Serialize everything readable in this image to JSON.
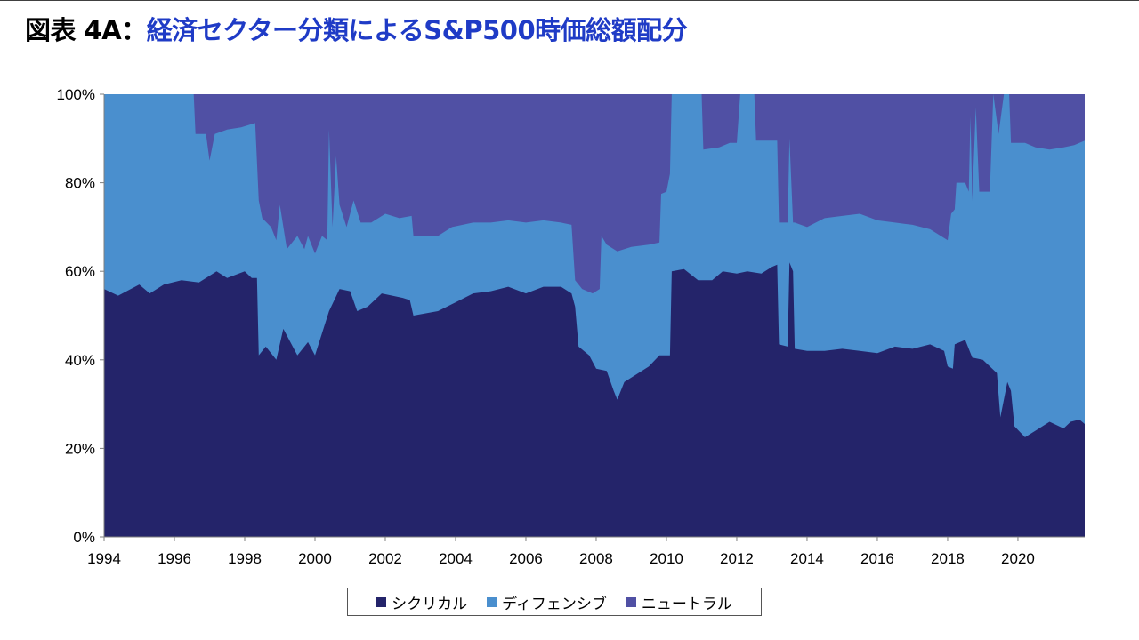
{
  "header": {
    "prefix": "図表 4A：",
    "title": "経済セクター分類によるS&P500時価総額配分"
  },
  "colors": {
    "cyclical": "#24246a",
    "defensive": "#4a8fce",
    "neutral": "#5050a4",
    "title_accent": "#1f3bc6"
  },
  "chart_data": {
    "type": "area",
    "stacked": true,
    "title": "経済セクター分類によるS&P500時価総額配分",
    "y_unit": "%",
    "ylim": [
      0,
      100
    ],
    "xlim": [
      1994,
      2021.9
    ],
    "y_ticks": [
      "0%",
      "20%",
      "40%",
      "60%",
      "80%",
      "100%"
    ],
    "x_ticks": [
      "1994",
      "1996",
      "1998",
      "2000",
      "2002",
      "2004",
      "2006",
      "2008",
      "2010",
      "2012",
      "2014",
      "2016",
      "2018",
      "2020"
    ],
    "legend_position": "bottom",
    "series": [
      {
        "name": "シクリカル",
        "points": [
          [
            1994.0,
            56
          ],
          [
            1994.4,
            54.5
          ],
          [
            1995.0,
            57
          ],
          [
            1995.3,
            55
          ],
          [
            1995.7,
            57
          ],
          [
            1996.2,
            58
          ],
          [
            1996.7,
            57.5
          ],
          [
            1997.2,
            60
          ],
          [
            1997.5,
            58.5
          ],
          [
            1998.0,
            60
          ],
          [
            1998.2,
            58.5
          ],
          [
            1998.35,
            58.5
          ],
          [
            1998.4,
            41
          ],
          [
            1998.6,
            43
          ],
          [
            1998.9,
            40
          ],
          [
            1999.1,
            47
          ],
          [
            1999.5,
            41
          ],
          [
            1999.8,
            44
          ],
          [
            2000.0,
            41
          ],
          [
            2000.2,
            46
          ],
          [
            2000.4,
            51
          ],
          [
            2000.7,
            56
          ],
          [
            2001.0,
            55.5
          ],
          [
            2001.2,
            51
          ],
          [
            2001.5,
            52
          ],
          [
            2001.9,
            55
          ],
          [
            2002.5,
            54
          ],
          [
            2002.7,
            53.5
          ],
          [
            2002.8,
            50
          ],
          [
            2003.5,
            51
          ],
          [
            2004.0,
            53
          ],
          [
            2004.5,
            55
          ],
          [
            2005.0,
            55.5
          ],
          [
            2005.5,
            56.5
          ],
          [
            2006.0,
            55
          ],
          [
            2006.5,
            56.5
          ],
          [
            2007.0,
            56.5
          ],
          [
            2007.3,
            55
          ],
          [
            2007.4,
            52
          ],
          [
            2007.5,
            43
          ],
          [
            2007.8,
            41
          ],
          [
            2008.0,
            38
          ],
          [
            2008.3,
            37.5
          ],
          [
            2008.5,
            33
          ],
          [
            2008.6,
            31
          ],
          [
            2008.8,
            35
          ],
          [
            2009.0,
            36
          ],
          [
            2009.5,
            38.5
          ],
          [
            2009.8,
            41
          ],
          [
            2010.1,
            41
          ],
          [
            2010.15,
            60
          ],
          [
            2010.5,
            60.5
          ],
          [
            2010.9,
            58
          ],
          [
            2011.3,
            58
          ],
          [
            2011.6,
            60
          ],
          [
            2012.0,
            59.5
          ],
          [
            2012.3,
            60
          ],
          [
            2012.7,
            59.5
          ],
          [
            2013.0,
            61
          ],
          [
            2013.15,
            61.5
          ],
          [
            2013.2,
            43.5
          ],
          [
            2013.45,
            43
          ],
          [
            2013.5,
            62
          ],
          [
            2013.6,
            60
          ],
          [
            2013.65,
            42.5
          ],
          [
            2014.0,
            42
          ],
          [
            2014.5,
            42
          ],
          [
            2015.0,
            42.5
          ],
          [
            2015.5,
            42
          ],
          [
            2016.0,
            41.5
          ],
          [
            2016.5,
            43
          ],
          [
            2017.0,
            42.5
          ],
          [
            2017.5,
            43.5
          ],
          [
            2017.9,
            42
          ],
          [
            2018.0,
            38.5
          ],
          [
            2018.15,
            38
          ],
          [
            2018.2,
            43.5
          ],
          [
            2018.5,
            44.5
          ],
          [
            2018.7,
            40.5
          ],
          [
            2019.0,
            40
          ],
          [
            2019.4,
            37
          ],
          [
            2019.5,
            27
          ],
          [
            2019.7,
            35
          ],
          [
            2019.8,
            33
          ],
          [
            2019.9,
            25
          ],
          [
            2020.2,
            22.5
          ],
          [
            2020.5,
            24
          ],
          [
            2020.9,
            26
          ],
          [
            2021.3,
            24.5
          ],
          [
            2021.5,
            26
          ],
          [
            2021.75,
            26.5
          ],
          [
            2021.9,
            25.5
          ]
        ]
      },
      {
        "name": "ディフェンシブ",
        "points": [
          [
            1994.0,
            100
          ],
          [
            1996.55,
            100
          ],
          [
            1996.6,
            91
          ],
          [
            1996.9,
            91
          ],
          [
            1997.0,
            85
          ],
          [
            1997.15,
            91
          ],
          [
            1997.5,
            92
          ],
          [
            1997.9,
            92.5
          ],
          [
            1998.3,
            93.5
          ],
          [
            1998.4,
            76
          ],
          [
            1998.5,
            72
          ],
          [
            1998.75,
            70
          ],
          [
            1998.9,
            67
          ],
          [
            1999.0,
            75
          ],
          [
            1999.2,
            65
          ],
          [
            1999.5,
            68
          ],
          [
            1999.7,
            65
          ],
          [
            1999.8,
            68
          ],
          [
            2000.0,
            64
          ],
          [
            2000.2,
            68
          ],
          [
            2000.35,
            67
          ],
          [
            2000.4,
            92
          ],
          [
            2000.5,
            70
          ],
          [
            2000.6,
            86
          ],
          [
            2000.7,
            75
          ],
          [
            2000.9,
            70
          ],
          [
            2001.1,
            76
          ],
          [
            2001.3,
            71
          ],
          [
            2001.6,
            71
          ],
          [
            2002.0,
            73
          ],
          [
            2002.4,
            72
          ],
          [
            2002.75,
            72.5
          ],
          [
            2002.8,
            68
          ],
          [
            2003.5,
            68
          ],
          [
            2003.9,
            70
          ],
          [
            2004.5,
            71
          ],
          [
            2005.0,
            71
          ],
          [
            2005.5,
            71.5
          ],
          [
            2006.0,
            71
          ],
          [
            2006.5,
            71.5
          ],
          [
            2007.0,
            71
          ],
          [
            2007.3,
            70.5
          ],
          [
            2007.4,
            58
          ],
          [
            2007.6,
            56
          ],
          [
            2007.9,
            55
          ],
          [
            2008.1,
            56
          ],
          [
            2008.15,
            68
          ],
          [
            2008.3,
            66
          ],
          [
            2008.6,
            64.5
          ],
          [
            2009.0,
            65.5
          ],
          [
            2009.5,
            66
          ],
          [
            2009.8,
            66.5
          ],
          [
            2009.85,
            77.5
          ],
          [
            2010.0,
            78
          ],
          [
            2010.1,
            82
          ],
          [
            2010.15,
            100
          ],
          [
            2011.0,
            100
          ],
          [
            2011.05,
            87.5
          ],
          [
            2011.5,
            88
          ],
          [
            2011.8,
            89
          ],
          [
            2012.0,
            89
          ],
          [
            2012.1,
            100
          ],
          [
            2012.5,
            100
          ],
          [
            2012.55,
            89.5
          ],
          [
            2013.15,
            89.5
          ],
          [
            2013.2,
            71
          ],
          [
            2013.45,
            71
          ],
          [
            2013.5,
            90
          ],
          [
            2013.6,
            71
          ],
          [
            2013.65,
            71
          ],
          [
            2014.0,
            70
          ],
          [
            2014.5,
            72
          ],
          [
            2015.0,
            72.5
          ],
          [
            2015.5,
            73
          ],
          [
            2016.0,
            71.5
          ],
          [
            2016.5,
            71
          ],
          [
            2017.0,
            70.5
          ],
          [
            2017.5,
            69.5
          ],
          [
            2017.9,
            67.5
          ],
          [
            2018.0,
            67
          ],
          [
            2018.1,
            73
          ],
          [
            2018.2,
            74
          ],
          [
            2018.25,
            80
          ],
          [
            2018.5,
            80
          ],
          [
            2018.6,
            78
          ],
          [
            2018.65,
            95
          ],
          [
            2018.7,
            76
          ],
          [
            2018.8,
            97
          ],
          [
            2018.9,
            78
          ],
          [
            2019.2,
            78
          ],
          [
            2019.3,
            100
          ],
          [
            2019.45,
            91
          ],
          [
            2019.6,
            100
          ],
          [
            2019.75,
            100
          ],
          [
            2019.8,
            89
          ],
          [
            2020.2,
            89
          ],
          [
            2020.5,
            88
          ],
          [
            2020.9,
            87.5
          ],
          [
            2021.3,
            88
          ],
          [
            2021.6,
            88.5
          ],
          [
            2021.75,
            89
          ],
          [
            2021.9,
            89.5
          ]
        ]
      },
      {
        "name": "ニュートラル",
        "points": [
          [
            1994.0,
            100
          ],
          [
            2021.9,
            100
          ]
        ]
      }
    ]
  }
}
